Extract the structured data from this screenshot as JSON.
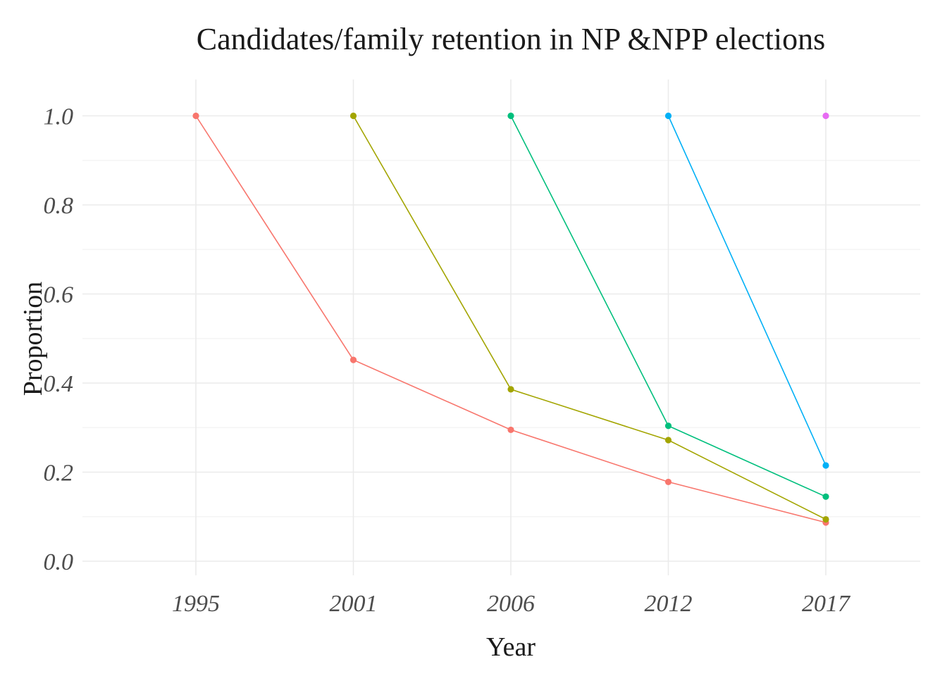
{
  "chart_data": {
    "type": "line",
    "title": "Candidates/family retention in NP &NPP elections",
    "xlabel": "Year",
    "ylabel": "Proportion",
    "categories": [
      "1995",
      "2001",
      "2006",
      "2012",
      "2017"
    ],
    "ylim": [
      0,
      1.05
    ],
    "yticks": [
      "0.0",
      "0.2",
      "0.4",
      "0.6",
      "0.8",
      "1.0"
    ],
    "grid": true,
    "legend": "none",
    "series": [
      {
        "color": "#F8766D",
        "values": [
          1.0,
          0.452,
          0.295,
          0.178,
          0.087
        ]
      },
      {
        "color": "#A3A500",
        "values": [
          null,
          1.0,
          0.386,
          0.272,
          0.094
        ]
      },
      {
        "color": "#00BF7D",
        "values": [
          null,
          null,
          1.0,
          0.304,
          0.145
        ]
      },
      {
        "color": "#00B0F6",
        "values": [
          null,
          null,
          null,
          1.0,
          0.215
        ]
      },
      {
        "color": "#E76BF3",
        "values": [
          null,
          null,
          null,
          null,
          1.0
        ]
      }
    ]
  }
}
